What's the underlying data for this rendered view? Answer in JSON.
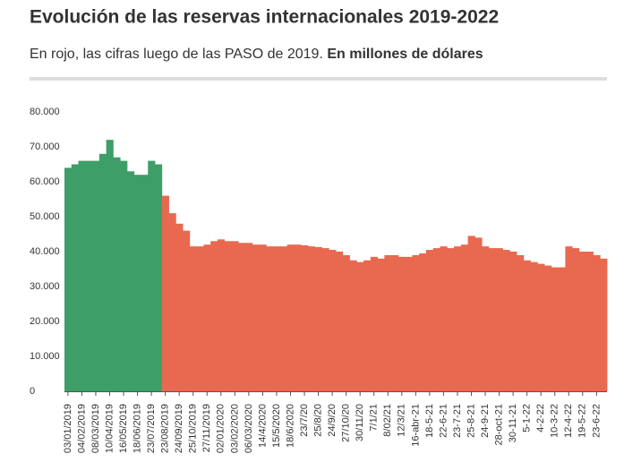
{
  "chart_data": {
    "type": "bar",
    "title": "Evolución de las reservas internacionales 2019-2022",
    "subtitle": "En rojo, las cifras luego de las PASO de 2019.",
    "note": "En millones de dólares",
    "categories": [
      "03/01/2019",
      null,
      "04/02/2019",
      null,
      "08/03/2019",
      null,
      "10/04/2019",
      null,
      "16/05/2019",
      null,
      "18/06/2019",
      null,
      "23/07/2019",
      null,
      "23/08/2019",
      null,
      "24/09/2019",
      null,
      "25/10/2019",
      null,
      "27/11/2019",
      null,
      "02/01/2020",
      null,
      "03/02/2020",
      null,
      "06/03/2020",
      null,
      "14/4/2020",
      null,
      "15/5/2020",
      null,
      "18/6/2020",
      null,
      "23/7/20",
      null,
      "25/8/20",
      null,
      "24/9/20",
      null,
      "27/10/20",
      null,
      "30/11/20",
      null,
      "7/1/21",
      null,
      "8/02/21",
      null,
      "12/3/21",
      null,
      "16-abr-21",
      null,
      "18-5-21",
      null,
      "22-6-21",
      null,
      "23-7-21",
      null,
      "25-8-21",
      null,
      "24-9-21",
      null,
      "28-oct-21",
      null,
      "30-11-21",
      null,
      "5-1-22",
      null,
      "4-2-22",
      null,
      "10-3-22",
      null,
      "12-4-22",
      null,
      "19-5-22",
      null,
      "23-6-22",
      null
    ],
    "series": [
      {
        "color": "#3e9e68",
        "values": [
          64000,
          65000,
          66000,
          66000,
          66000,
          68000,
          72000,
          67000,
          66000,
          63000,
          62000,
          62000,
          66000,
          65000,
          null,
          null,
          null,
          null,
          null,
          null,
          null,
          null,
          null,
          null,
          null,
          null,
          null,
          null,
          null,
          null,
          null,
          null,
          null,
          null,
          null,
          null,
          null,
          null,
          null,
          null,
          null,
          null,
          null,
          null,
          null,
          null,
          null,
          null,
          null,
          null,
          null,
          null,
          null,
          null,
          null,
          null,
          null,
          null,
          null,
          null,
          null,
          null,
          null,
          null,
          null,
          null,
          null,
          null,
          null,
          null,
          null,
          null,
          null,
          null,
          null,
          null,
          null,
          null
        ]
      },
      {
        "color": "#e8694f",
        "values": [
          null,
          null,
          null,
          null,
          null,
          null,
          null,
          null,
          null,
          null,
          null,
          null,
          null,
          null,
          56000,
          51000,
          48000,
          46000,
          41500,
          41500,
          42000,
          43000,
          43500,
          43000,
          43000,
          42500,
          42500,
          42000,
          42000,
          41500,
          41500,
          41500,
          42000,
          42000,
          41800,
          41500,
          41300,
          41000,
          40500,
          40000,
          39000,
          37500,
          37000,
          37500,
          38500,
          38000,
          39000,
          39000,
          38500,
          38500,
          39000,
          39500,
          40500,
          41000,
          41500,
          41000,
          41500,
          42000,
          44500,
          44000,
          41500,
          41000,
          41000,
          40500,
          40000,
          39000,
          37500,
          37000,
          36500,
          36000,
          35500,
          35500,
          41500,
          41000,
          40000,
          40000,
          39000,
          38000
        ]
      }
    ],
    "ylim": [
      0,
      80000
    ],
    "yticks": [
      0,
      {
        "value": 10000,
        "label": "10.000"
      },
      {
        "value": 20000,
        "label": "20.000"
      },
      {
        "value": 30000,
        "label": "30.000"
      },
      {
        "value": 40000,
        "label": "40.000"
      },
      {
        "value": 50000,
        "label": "50.000"
      },
      {
        "value": 60000,
        "label": "60.000"
      },
      {
        "value": 70000,
        "label": "70.000"
      },
      {
        "value": 80000,
        "label": "80.000"
      }
    ],
    "grid": false
  }
}
